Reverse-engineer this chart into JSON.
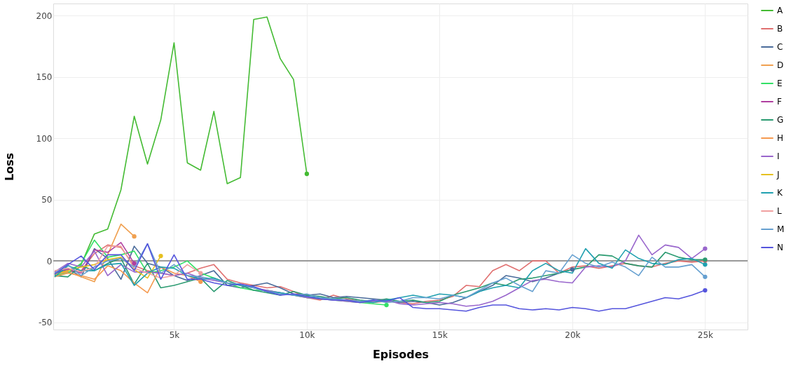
{
  "chart_data": {
    "type": "line",
    "xlabel": "Episodes",
    "ylabel": "Loss",
    "x": [
      500,
      1000,
      1500,
      2000,
      2500,
      3000,
      3500,
      4000,
      4500,
      5000,
      5500,
      6000,
      6500,
      7000,
      7500,
      8000,
      8500,
      9000,
      9500,
      10000,
      10500,
      11000,
      11500,
      12000,
      12500,
      13000,
      13500,
      14000,
      14500,
      15000,
      15500,
      16000,
      16500,
      17000,
      17500,
      18000,
      18500,
      19000,
      19500,
      20000,
      20500,
      21000,
      21500,
      22000,
      22500,
      23000,
      23500,
      24000,
      24500,
      25000
    ],
    "series": [
      {
        "name": "A",
        "color": "#44bb33",
        "values": [
          -10,
          -8,
          -3,
          22,
          26,
          58,
          118,
          79,
          115,
          178,
          80,
          74,
          122,
          63,
          68,
          197,
          199,
          165,
          148,
          71,
          null,
          null,
          null,
          null,
          null,
          null,
          null,
          null,
          null,
          null,
          null,
          null,
          null,
          null,
          null,
          null,
          null,
          null,
          null,
          null,
          null,
          null,
          null,
          null,
          null,
          null,
          null,
          null,
          null,
          null
        ]
      },
      {
        "name": "B",
        "color": "#e07070",
        "values": [
          -10,
          -9,
          -8,
          6,
          13,
          11,
          -4,
          -8,
          -10,
          -12,
          -10,
          -6,
          -3,
          -15,
          -18,
          -20,
          -22,
          -21,
          -25,
          -30,
          -32,
          -28,
          -31,
          -33,
          -34,
          -33,
          -34,
          -35,
          -33,
          -32,
          -29,
          -20,
          -21,
          -8,
          -3,
          -8,
          0,
          0,
          -10,
          -5,
          -4,
          -6,
          -4,
          -2,
          -4,
          -5,
          -2,
          0,
          -1,
          0
        ]
      },
      {
        "name": "C",
        "color": "#4a6b9a",
        "values": [
          -11,
          -6,
          -13,
          10,
          2,
          -15,
          12,
          -2,
          -5,
          -12,
          -16,
          -12,
          -8,
          -20,
          -22,
          -20,
          -18,
          -22,
          -27,
          -28,
          -27,
          -30,
          -29,
          -30,
          -31,
          -32,
          -34,
          -33,
          -34,
          -36,
          -34,
          -30,
          -25,
          -20,
          -12,
          -14,
          -17,
          -14,
          -10,
          -7,
          null,
          null,
          null,
          null,
          null,
          null,
          null,
          null,
          null,
          null
        ]
      },
      {
        "name": "D",
        "color": "#f0a050",
        "values": [
          -12,
          -9,
          -13,
          -17,
          5,
          30,
          20,
          null,
          null,
          null,
          null,
          null,
          null,
          null,
          null,
          null,
          null,
          null,
          null,
          null,
          null,
          null,
          null,
          null,
          null,
          null,
          null,
          null,
          null,
          null,
          null,
          null,
          null,
          null,
          null,
          null,
          null,
          null,
          null,
          null,
          null,
          null,
          null,
          null,
          null,
          null,
          null,
          null,
          null,
          null
        ]
      },
      {
        "name": "E",
        "color": "#33e066",
        "values": [
          -12,
          -10,
          -2,
          17,
          3,
          5,
          8,
          -10,
          -8,
          -5,
          0,
          -10,
          -14,
          -18,
          -22,
          -24,
          -24,
          -26,
          -28,
          -30,
          -31,
          -32,
          -33,
          -34,
          -35,
          -36,
          null,
          null,
          null,
          null,
          null,
          null,
          null,
          null,
          null,
          null,
          null,
          null,
          null,
          null,
          null,
          null,
          null,
          null,
          null,
          null,
          null,
          null,
          null,
          null
        ]
      },
      {
        "name": "F",
        "color": "#b03fa0",
        "values": [
          -9,
          -7,
          -10,
          9,
          7,
          15,
          -2,
          null,
          null,
          null,
          null,
          null,
          null,
          null,
          null,
          null,
          null,
          null,
          null,
          null,
          null,
          null,
          null,
          null,
          null,
          null,
          null,
          null,
          null,
          null,
          null,
          null,
          null,
          null,
          null,
          null,
          null,
          null,
          null,
          null,
          null,
          null,
          null,
          null,
          null,
          null,
          null,
          null,
          null,
          null
        ]
      },
      {
        "name": "G",
        "color": "#2a9a70",
        "values": [
          -12,
          -13,
          -4,
          -8,
          -2,
          2,
          -19,
          -2,
          -22,
          -20,
          -17,
          -14,
          -25,
          -16,
          -20,
          -24,
          -26,
          -28,
          -25,
          -28,
          -29,
          -31,
          -30,
          -32,
          -33,
          -31,
          -33,
          -32,
          -34,
          -33,
          -28,
          -25,
          -22,
          -18,
          -20,
          -15,
          -14,
          -12,
          -10,
          -7,
          -5,
          5,
          4,
          -2,
          -4,
          -5,
          7,
          3,
          1,
          1
        ]
      },
      {
        "name": "H",
        "color": "#f59a50",
        "values": [
          -13,
          -10,
          -12,
          -15,
          -4,
          -8,
          -18,
          -26,
          -5,
          -10,
          -12,
          -17,
          null,
          null,
          null,
          null,
          null,
          null,
          null,
          null,
          null,
          null,
          null,
          null,
          null,
          null,
          null,
          null,
          null,
          null,
          null,
          null,
          null,
          null,
          null,
          null,
          null,
          null,
          null,
          null,
          null,
          null,
          null,
          null,
          null,
          null,
          null,
          null,
          null,
          null
        ]
      },
      {
        "name": "I",
        "color": "#9966cc",
        "values": [
          -9,
          -2,
          -5,
          8,
          -12,
          -3,
          -9,
          -9,
          -10,
          -12,
          -10,
          -14,
          -16,
          -18,
          -20,
          -22,
          -24,
          -26,
          -28,
          -30,
          -31,
          -32,
          -33,
          -34,
          -33,
          -32,
          -35,
          -36,
          -35,
          -34,
          -35,
          -37,
          -36,
          -33,
          -28,
          -22,
          -16,
          -15,
          -17,
          -18,
          -5,
          -4,
          -5,
          0,
          21,
          5,
          13,
          11,
          2,
          10
        ]
      },
      {
        "name": "J",
        "color": "#e6c020",
        "values": [
          -11,
          -8,
          -5,
          -3,
          1,
          3,
          -7,
          -14,
          4,
          null,
          null,
          null,
          null,
          null,
          null,
          null,
          null,
          null,
          null,
          null,
          null,
          null,
          null,
          null,
          null,
          null,
          null,
          null,
          null,
          null,
          null,
          null,
          null,
          null,
          null,
          null,
          null,
          null,
          null,
          null,
          null,
          null,
          null,
          null,
          null,
          null,
          null,
          null,
          null,
          null
        ]
      },
      {
        "name": "K",
        "color": "#20a0b0",
        "values": [
          -13,
          -4,
          -8,
          -8,
          -3,
          -2,
          -20,
          -10,
          -5,
          -6,
          -12,
          -15,
          -14,
          -18,
          -20,
          -22,
          -25,
          -26,
          -28,
          -29,
          -30,
          -31,
          -32,
          -33,
          -34,
          -32,
          -30,
          -28,
          -30,
          -27,
          -28,
          -30,
          -25,
          -22,
          -20,
          -22,
          -8,
          -2,
          -8,
          -10,
          10,
          -2,
          -6,
          9,
          2,
          -2,
          -3,
          1,
          2,
          -3
        ]
      },
      {
        "name": "L",
        "color": "#f0a0a0",
        "values": [
          -8,
          -6,
          -9,
          -5,
          12,
          12,
          -6,
          -10,
          -14,
          -12,
          -3,
          -10,
          null,
          null,
          null,
          null,
          null,
          null,
          null,
          null,
          null,
          null,
          null,
          null,
          null,
          null,
          null,
          null,
          null,
          null,
          null,
          null,
          null,
          null,
          null,
          null,
          null,
          null,
          null,
          null,
          null,
          null,
          null,
          null,
          null,
          null,
          null,
          null,
          null,
          null
        ]
      },
      {
        "name": "M",
        "color": "#66a0d0",
        "values": [
          -10,
          -3,
          -12,
          -5,
          0,
          2,
          -5,
          14,
          -10,
          -3,
          -12,
          -13,
          -15,
          -18,
          -19,
          -22,
          -25,
          -27,
          -28,
          -27,
          -30,
          -31,
          -32,
          -33,
          -32,
          -34,
          -33,
          -30,
          -30,
          -31,
          -28,
          -30,
          -24,
          -18,
          -14,
          -20,
          -25,
          -8,
          -10,
          5,
          -2,
          -5,
          -1,
          -5,
          -12,
          3,
          -5,
          -5,
          -3,
          -13
        ]
      },
      {
        "name": "N",
        "color": "#5555dd",
        "values": [
          -11,
          -3,
          4,
          -7,
          5,
          5,
          -8,
          14,
          -15,
          5,
          -15,
          -15,
          -18,
          -20,
          -19,
          -21,
          -25,
          -28,
          -27,
          -29,
          -31,
          -32,
          -32,
          -34,
          -32,
          -33,
          -30,
          -38,
          -39,
          -39,
          -40,
          -41,
          -38,
          -36,
          -36,
          -39,
          -40,
          -39,
          -40,
          -38,
          -39,
          -41,
          -39,
          -39,
          -36,
          -33,
          -30,
          -31,
          -28,
          -24
        ]
      }
    ],
    "xlim": [
      450,
      26600
    ],
    "ylim": [
      -56,
      210
    ],
    "xticks": [
      {
        "value": 5000,
        "label": "5k"
      },
      {
        "value": 10000,
        "label": "10k"
      },
      {
        "value": 15000,
        "label": "15k"
      },
      {
        "value": 20000,
        "label": "20k"
      },
      {
        "value": 25000,
        "label": "25k"
      }
    ],
    "yticks": [
      -50,
      0,
      50,
      100,
      150,
      200
    ],
    "ref_lines": [
      {
        "axis": "y",
        "value": 0,
        "color": "#999999"
      }
    ],
    "grid": true,
    "legend": "right",
    "line_style": "solid"
  }
}
